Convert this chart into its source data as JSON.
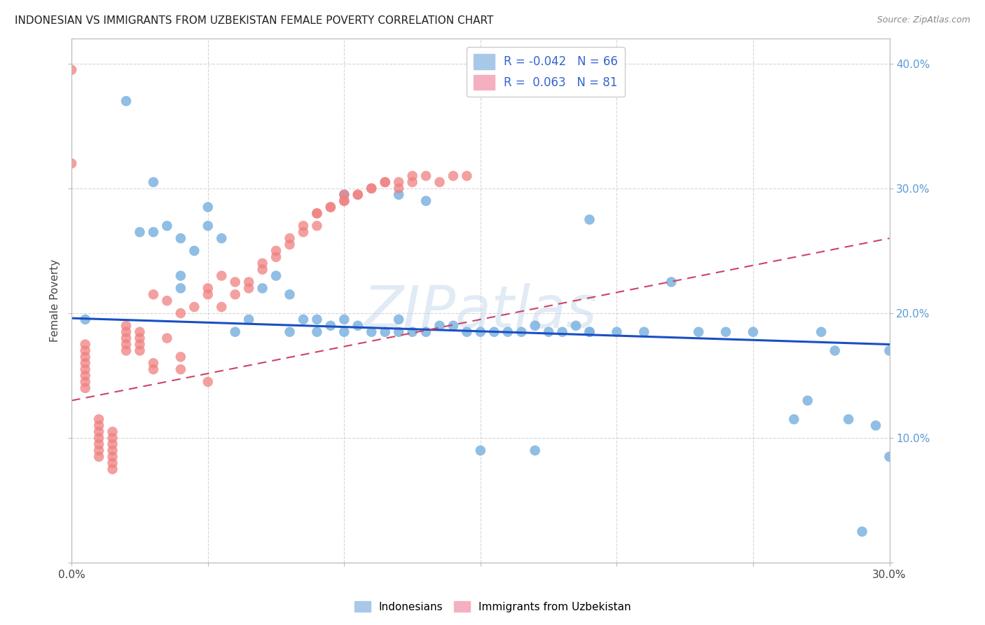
{
  "title": "INDONESIAN VS IMMIGRANTS FROM UZBEKISTAN FEMALE POVERTY CORRELATION CHART",
  "source": "Source: ZipAtlas.com",
  "ylabel": "Female Poverty",
  "xlim": [
    0.0,
    0.3
  ],
  "ylim": [
    0.0,
    0.42
  ],
  "legend_labels_bottom": [
    "Indonesians",
    "Immigrants from Uzbekistan"
  ],
  "blue_color": "#7db3e0",
  "pink_color": "#f08080",
  "trend_blue_color": "#1a4fc4",
  "trend_pink_color": "#cc4466",
  "watermark": "ZIPatlas",
  "background_color": "#ffffff",
  "blue_points_x": [
    0.005,
    0.02,
    0.025,
    0.03,
    0.03,
    0.035,
    0.04,
    0.04,
    0.04,
    0.045,
    0.05,
    0.05,
    0.055,
    0.06,
    0.065,
    0.07,
    0.075,
    0.08,
    0.08,
    0.085,
    0.09,
    0.09,
    0.095,
    0.1,
    0.1,
    0.105,
    0.11,
    0.115,
    0.12,
    0.12,
    0.125,
    0.13,
    0.135,
    0.14,
    0.145,
    0.15,
    0.155,
    0.16,
    0.165,
    0.17,
    0.175,
    0.18,
    0.185,
    0.19,
    0.19,
    0.2,
    0.21,
    0.22,
    0.23,
    0.24,
    0.25,
    0.265,
    0.27,
    0.275,
    0.28,
    0.285,
    0.29,
    0.295,
    0.3,
    0.3,
    0.1,
    0.12,
    0.13,
    0.15,
    0.17,
    0.19
  ],
  "blue_points_y": [
    0.195,
    0.37,
    0.265,
    0.265,
    0.305,
    0.27,
    0.22,
    0.23,
    0.26,
    0.25,
    0.27,
    0.285,
    0.26,
    0.185,
    0.195,
    0.22,
    0.23,
    0.185,
    0.215,
    0.195,
    0.185,
    0.195,
    0.19,
    0.185,
    0.195,
    0.19,
    0.185,
    0.185,
    0.185,
    0.195,
    0.185,
    0.185,
    0.19,
    0.19,
    0.185,
    0.185,
    0.185,
    0.185,
    0.185,
    0.19,
    0.185,
    0.185,
    0.19,
    0.185,
    0.185,
    0.185,
    0.185,
    0.225,
    0.185,
    0.185,
    0.185,
    0.115,
    0.13,
    0.185,
    0.17,
    0.115,
    0.025,
    0.11,
    0.085,
    0.17,
    0.295,
    0.295,
    0.29,
    0.09,
    0.09,
    0.275
  ],
  "pink_points_x": [
    0.0,
    0.0,
    0.005,
    0.005,
    0.005,
    0.005,
    0.005,
    0.005,
    0.005,
    0.005,
    0.01,
    0.01,
    0.01,
    0.01,
    0.01,
    0.01,
    0.01,
    0.015,
    0.015,
    0.015,
    0.015,
    0.015,
    0.015,
    0.015,
    0.02,
    0.02,
    0.02,
    0.02,
    0.02,
    0.025,
    0.025,
    0.025,
    0.025,
    0.03,
    0.03,
    0.03,
    0.035,
    0.035,
    0.04,
    0.04,
    0.04,
    0.045,
    0.05,
    0.05,
    0.055,
    0.06,
    0.065,
    0.07,
    0.075,
    0.08,
    0.085,
    0.09,
    0.09,
    0.095,
    0.1,
    0.1,
    0.105,
    0.11,
    0.115,
    0.12,
    0.125,
    0.13,
    0.135,
    0.14,
    0.145,
    0.05,
    0.055,
    0.06,
    0.065,
    0.07,
    0.075,
    0.08,
    0.085,
    0.09,
    0.095,
    0.1,
    0.105,
    0.11,
    0.115,
    0.12,
    0.125
  ],
  "pink_points_y": [
    0.395,
    0.32,
    0.14,
    0.145,
    0.15,
    0.155,
    0.16,
    0.165,
    0.17,
    0.175,
    0.085,
    0.09,
    0.095,
    0.1,
    0.105,
    0.11,
    0.115,
    0.075,
    0.08,
    0.085,
    0.09,
    0.095,
    0.1,
    0.105,
    0.17,
    0.175,
    0.18,
    0.185,
    0.19,
    0.17,
    0.175,
    0.18,
    0.185,
    0.155,
    0.16,
    0.215,
    0.18,
    0.21,
    0.155,
    0.165,
    0.2,
    0.205,
    0.145,
    0.215,
    0.205,
    0.215,
    0.22,
    0.235,
    0.245,
    0.255,
    0.265,
    0.27,
    0.28,
    0.285,
    0.29,
    0.295,
    0.295,
    0.3,
    0.305,
    0.3,
    0.305,
    0.31,
    0.305,
    0.31,
    0.31,
    0.22,
    0.23,
    0.225,
    0.225,
    0.24,
    0.25,
    0.26,
    0.27,
    0.28,
    0.285,
    0.29,
    0.295,
    0.3,
    0.305,
    0.305,
    0.31
  ]
}
